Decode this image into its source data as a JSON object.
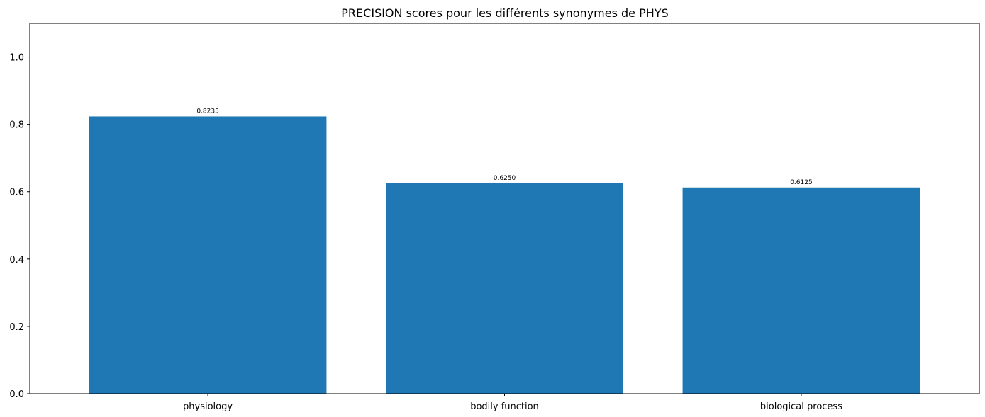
{
  "chart_data": {
    "type": "bar",
    "title": "PRECISION scores pour les différents synonymes de PHYS",
    "xlabel": "",
    "ylabel": "",
    "categories": [
      "physiology",
      "bodily function",
      "biological process"
    ],
    "values": [
      0.8235,
      0.625,
      0.6125
    ],
    "value_labels": [
      "0.8235",
      "0.6250",
      "0.6125"
    ],
    "ylim": [
      0,
      1.1
    ],
    "yticks": [
      0.0,
      0.2,
      0.4,
      0.6,
      0.8,
      1.0
    ],
    "ytick_labels": [
      "0.0",
      "0.2",
      "0.4",
      "0.6",
      "0.8",
      "1.0"
    ],
    "grid": false,
    "bar_color": "#1f77b4"
  }
}
